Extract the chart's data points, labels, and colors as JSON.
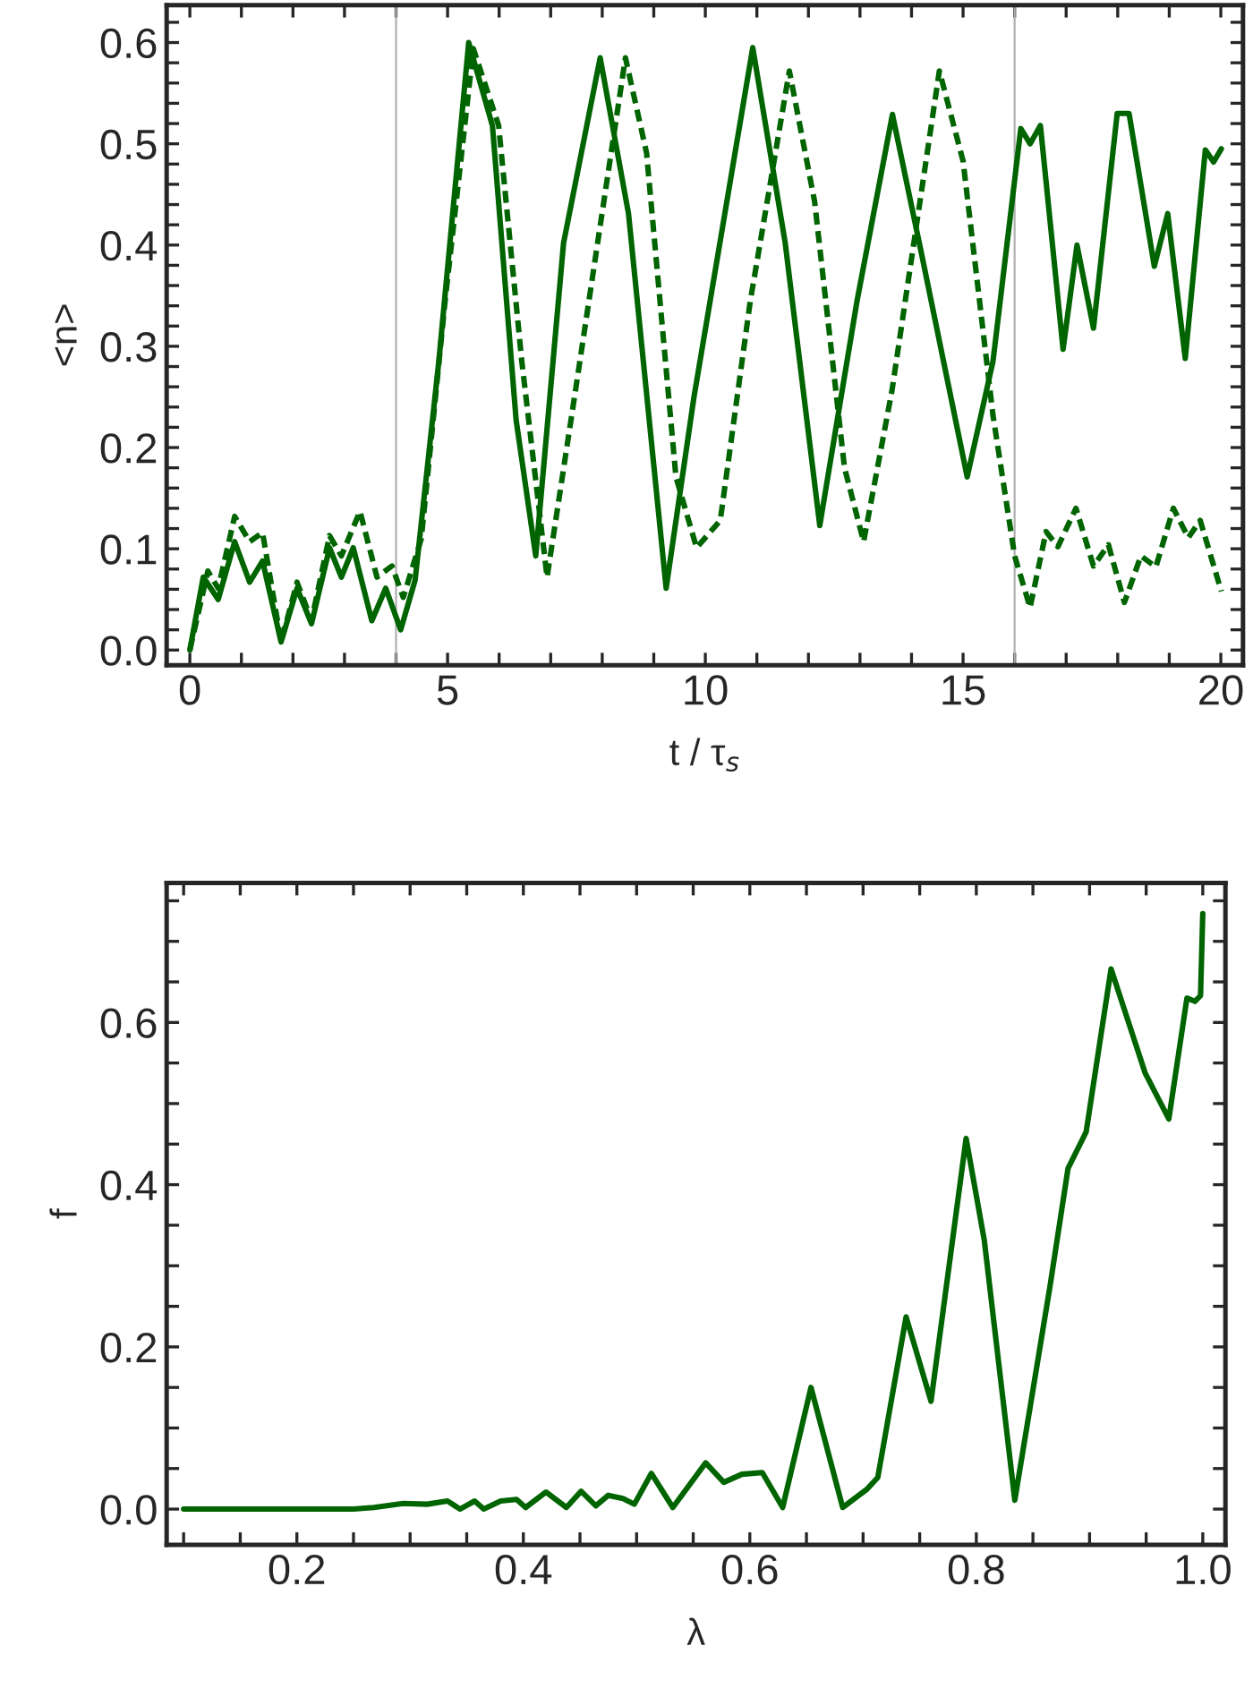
{
  "chart_data": [
    {
      "type": "line",
      "xlabel": "t / τ$_{s}$",
      "ylabel": "<n>",
      "xlim": [
        -0.45,
        20.43
      ],
      "ylim": [
        -0.015,
        0.637
      ],
      "xticks": [
        0,
        {
          "value": 1,
          "label": null
        },
        {
          "value": 2,
          "label": null
        },
        {
          "value": 3,
          "label": null
        },
        {
          "value": 4,
          "label": null
        },
        5,
        {
          "value": 6,
          "label": null
        },
        {
          "value": 7,
          "label": null
        },
        {
          "value": 8,
          "label": null
        },
        {
          "value": 9,
          "label": null
        },
        10,
        {
          "value": 11,
          "label": null
        },
        {
          "value": 12,
          "label": null
        },
        {
          "value": 13,
          "label": null
        },
        {
          "value": 14,
          "label": null
        },
        15,
        {
          "value": 16,
          "label": null
        },
        {
          "value": 17,
          "label": null
        },
        {
          "value": 18,
          "label": null
        },
        {
          "value": 19,
          "label": null
        },
        20
      ],
      "yticks": [
        {
          "value": 0,
          "label": "0.0"
        },
        {
          "value": 0.02,
          "label": null
        },
        {
          "value": 0.04,
          "label": null
        },
        {
          "value": 0.06,
          "label": null
        },
        {
          "value": 0.08,
          "label": null
        },
        {
          "value": 0.1,
          "label": "0.1"
        },
        {
          "value": 0.12,
          "label": null
        },
        {
          "value": 0.14,
          "label": null
        },
        {
          "value": 0.16,
          "label": null
        },
        {
          "value": 0.18,
          "label": null
        },
        {
          "value": 0.2,
          "label": "0.2"
        },
        {
          "value": 0.22,
          "label": null
        },
        {
          "value": 0.24,
          "label": null
        },
        {
          "value": 0.26,
          "label": null
        },
        {
          "value": 0.28,
          "label": null
        },
        {
          "value": 0.3,
          "label": "0.3"
        },
        {
          "value": 0.32,
          "label": null
        },
        {
          "value": 0.34,
          "label": null
        },
        {
          "value": 0.36,
          "label": null
        },
        {
          "value": 0.38,
          "label": null
        },
        {
          "value": 0.4,
          "label": "0.4"
        },
        {
          "value": 0.42,
          "label": null
        },
        {
          "value": 0.44,
          "label": null
        },
        {
          "value": 0.46,
          "label": null
        },
        {
          "value": 0.48,
          "label": null
        },
        {
          "value": 0.5,
          "label": "0.5"
        },
        {
          "value": 0.52,
          "label": null
        },
        {
          "value": 0.54,
          "label": null
        },
        {
          "value": 0.56,
          "label": null
        },
        {
          "value": 0.58,
          "label": null
        },
        {
          "value": 0.6,
          "label": "0.6"
        },
        {
          "value": 0.62,
          "label": null
        }
      ],
      "grid": false,
      "legend": false,
      "ref_lines": [
        {
          "axis": "x",
          "value": 4,
          "color": "#b0b0b0"
        },
        {
          "axis": "x",
          "value": 16,
          "color": "#b0b0b0"
        }
      ],
      "series": [
        {
          "color": "#006400",
          "line_style": "solid",
          "x": [
            0,
            0.26,
            0.55,
            0.87,
            1.16,
            1.41,
            1.77,
            2.08,
            2.36,
            2.71,
            2.94,
            3.17,
            3.53,
            3.8,
            4.09,
            4.37,
            4.83,
            5.41,
            5.87,
            6.33,
            6.71,
            7.25,
            7.96,
            8.51,
            9.24,
            9.78,
            10.92,
            11.55,
            12.22,
            12.94,
            13.63,
            14.2,
            15.08,
            15.58,
            16.12,
            16.3,
            16.5,
            16.94,
            17.21,
            17.53,
            17.99,
            18.22,
            18.71,
            18.97,
            19.31,
            19.7,
            19.86,
            20.01
          ],
          "values": [
            0,
            0.072,
            0.05,
            0.107,
            0.067,
            0.088,
            0.008,
            0.061,
            0.026,
            0.101,
            0.072,
            0.101,
            0.029,
            0.061,
            0.02,
            0.069,
            0.285,
            0.6,
            0.518,
            0.227,
            0.093,
            0.402,
            0.585,
            0.431,
            0.061,
            0.25,
            0.595,
            0.402,
            0.123,
            0.344,
            0.529,
            0.39,
            0.171,
            0.285,
            0.515,
            0.5,
            0.518,
            0.297,
            0.4,
            0.318,
            0.53,
            0.53,
            0.379,
            0.431,
            0.288,
            0.494,
            0.482,
            0.495
          ]
        },
        {
          "color": "#006400",
          "line_style": "dashed",
          "x": [
            0,
            0.35,
            0.55,
            0.87,
            1.16,
            1.41,
            1.77,
            2.08,
            2.36,
            2.71,
            2.94,
            3.3,
            3.63,
            3.92,
            4.14,
            4.49,
            4.95,
            5.5,
            5.99,
            6.44,
            6.93,
            7.48,
            8.45,
            8.86,
            9.43,
            9.83,
            10.29,
            10.87,
            11.63,
            12.12,
            12.7,
            13.07,
            13.62,
            14.54,
            15.0,
            15.58,
            16.0,
            16.3,
            16.61,
            16.84,
            17.19,
            17.53,
            17.82,
            18.13,
            18.45,
            18.74,
            19.08,
            19.37,
            19.6,
            20.01
          ],
          "values": [
            0,
            0.078,
            0.061,
            0.132,
            0.107,
            0.116,
            0.008,
            0.067,
            0.029,
            0.113,
            0.093,
            0.137,
            0.072,
            0.083,
            0.052,
            0.11,
            0.344,
            0.594,
            0.518,
            0.285,
            0.072,
            0.256,
            0.585,
            0.491,
            0.171,
            0.101,
            0.128,
            0.344,
            0.572,
            0.443,
            0.18,
            0.107,
            0.256,
            0.572,
            0.483,
            0.232,
            0.093,
            0.042,
            0.117,
            0.102,
            0.14,
            0.083,
            0.104,
            0.047,
            0.093,
            0.082,
            0.14,
            0.111,
            0.128,
            0.058
          ]
        }
      ]
    },
    {
      "type": "line",
      "xlabel": "λ",
      "ylabel": "f",
      "xlim": [
        0.085,
        1.02
      ],
      "ylim": [
        -0.044,
        0.772
      ],
      "xticks": [
        {
          "value": 0.1,
          "label": null
        },
        {
          "value": 0.15,
          "label": null
        },
        {
          "value": 0.2,
          "label": "0.2"
        },
        {
          "value": 0.25,
          "label": null
        },
        {
          "value": 0.3,
          "label": null
        },
        {
          "value": 0.35,
          "label": null
        },
        {
          "value": 0.4,
          "label": "0.4"
        },
        {
          "value": 0.45,
          "label": null
        },
        {
          "value": 0.5,
          "label": null
        },
        {
          "value": 0.55,
          "label": null
        },
        {
          "value": 0.6,
          "label": "0.6"
        },
        {
          "value": 0.65,
          "label": null
        },
        {
          "value": 0.7,
          "label": null
        },
        {
          "value": 0.75,
          "label": null
        },
        {
          "value": 0.8,
          "label": "0.8"
        },
        {
          "value": 0.85,
          "label": null
        },
        {
          "value": 0.9,
          "label": null
        },
        {
          "value": 0.95,
          "label": null
        },
        {
          "value": 1.0,
          "label": "1.0"
        }
      ],
      "yticks": [
        {
          "value": 0,
          "label": "0.0"
        },
        {
          "value": 0.05,
          "label": null
        },
        {
          "value": 0.1,
          "label": null
        },
        {
          "value": 0.15,
          "label": null
        },
        {
          "value": 0.2,
          "label": "0.2"
        },
        {
          "value": 0.25,
          "label": null
        },
        {
          "value": 0.3,
          "label": null
        },
        {
          "value": 0.35,
          "label": null
        },
        {
          "value": 0.4,
          "label": "0.4"
        },
        {
          "value": 0.45,
          "label": null
        },
        {
          "value": 0.5,
          "label": null
        },
        {
          "value": 0.55,
          "label": null
        },
        {
          "value": 0.6,
          "label": "0.6"
        },
        {
          "value": 0.65,
          "label": null
        },
        {
          "value": 0.7,
          "label": null
        },
        {
          "value": 0.75,
          "label": null
        }
      ],
      "grid": false,
      "legend": false,
      "series": [
        {
          "color": "#006400",
          "line_style": "solid",
          "x": [
            0.1,
            0.25,
            0.268,
            0.294,
            0.315,
            0.333,
            0.344,
            0.357,
            0.365,
            0.38,
            0.394,
            0.402,
            0.42,
            0.438,
            0.451,
            0.464,
            0.475,
            0.488,
            0.498,
            0.513,
            0.532,
            0.561,
            0.577,
            0.593,
            0.611,
            0.629,
            0.654,
            0.682,
            0.703,
            0.713,
            0.738,
            0.76,
            0.791,
            0.807,
            0.834,
            0.865,
            0.881,
            0.897,
            0.919,
            0.949,
            0.97,
            0.986,
            0.993,
            0.998,
            1.0
          ],
          "values": [
            0,
            0,
            0.002,
            0.007,
            0.006,
            0.01,
            0,
            0.01,
            0,
            0.01,
            0.012,
            0.002,
            0.021,
            0.002,
            0.022,
            0.004,
            0.017,
            0.013,
            0.006,
            0.044,
            0.002,
            0.057,
            0.033,
            0.043,
            0.045,
            0.002,
            0.15,
            0.002,
            0.024,
            0.039,
            0.237,
            0.133,
            0.457,
            0.332,
            0.011,
            0.274,
            0.42,
            0.465,
            0.666,
            0.538,
            0.481,
            0.63,
            0.626,
            0.633,
            0.734
          ]
        }
      ]
    }
  ]
}
